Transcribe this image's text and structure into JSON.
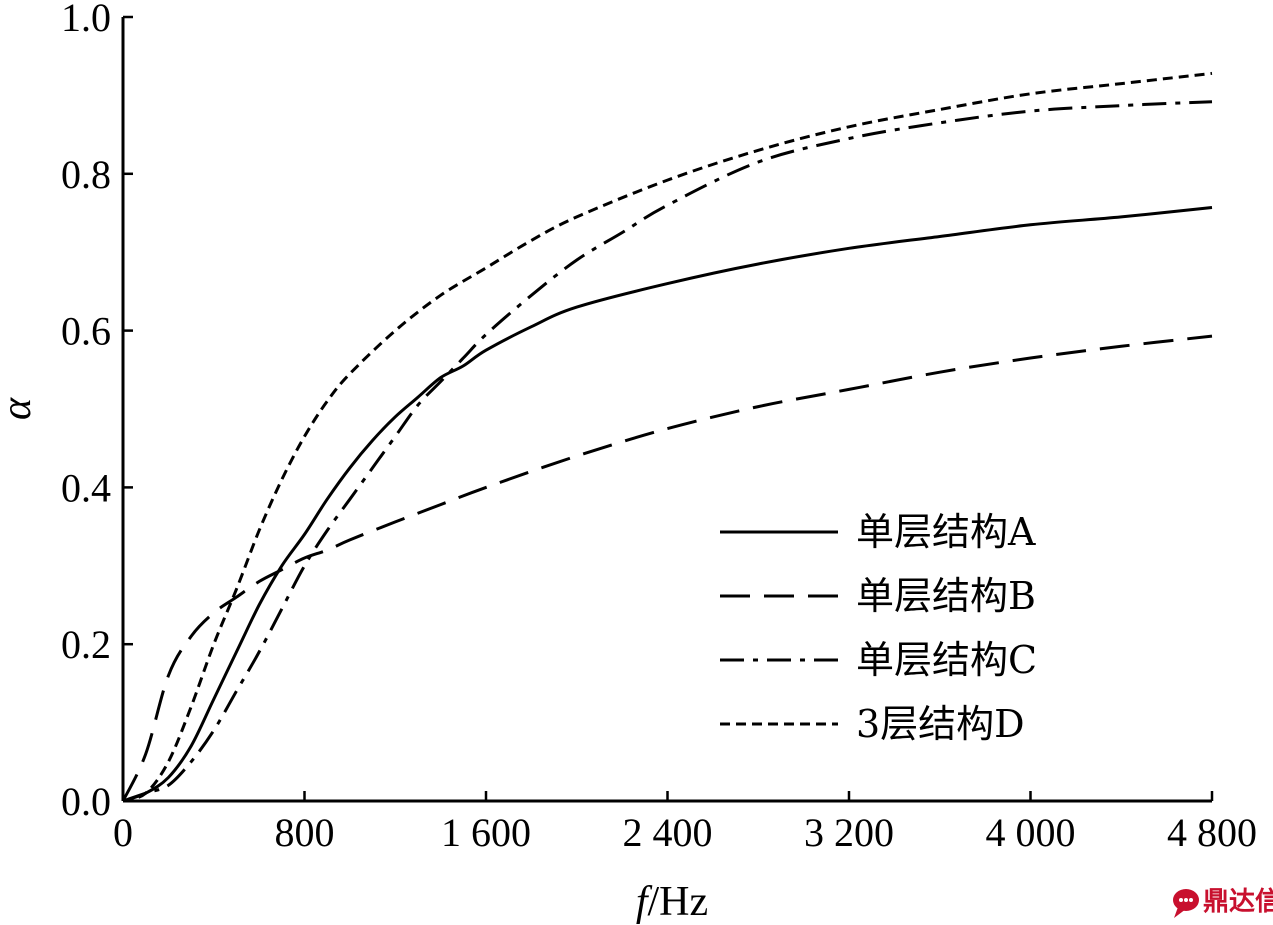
{
  "chart_data": {
    "type": "line",
    "title": "",
    "xlabel_italic": "f",
    "xlabel_unit": "/Hz",
    "ylabel": "α",
    "xlim": [
      0,
      4800
    ],
    "ylim": [
      0,
      1.0
    ],
    "x_ticks": [
      0,
      800,
      1600,
      2400,
      3200,
      4000,
      4800
    ],
    "x_tick_labels": [
      "0",
      "800",
      "1 600",
      "2 400",
      "3 200",
      "4 000",
      "4 800"
    ],
    "y_ticks": [
      0,
      0.2,
      0.4,
      0.6,
      0.8,
      1.0
    ],
    "y_tick_labels": [
      "0.0",
      "0.2",
      "0.4",
      "0.6",
      "0.8",
      "1.0"
    ],
    "grid": false,
    "legend_position": "lower-right",
    "series": [
      {
        "name": "单层结构A",
        "style": "solid",
        "x": [
          0,
          100,
          200,
          300,
          400,
          500,
          600,
          700,
          800,
          900,
          1000,
          1100,
          1200,
          1300,
          1400,
          1500,
          1600,
          1800,
          2000,
          2400,
          2800,
          3200,
          3600,
          4000,
          4400,
          4800
        ],
        "y": [
          0,
          0.01,
          0.03,
          0.07,
          0.13,
          0.19,
          0.25,
          0.3,
          0.34,
          0.385,
          0.425,
          0.46,
          0.49,
          0.515,
          0.54,
          0.555,
          0.575,
          0.605,
          0.63,
          0.66,
          0.685,
          0.705,
          0.72,
          0.735,
          0.745,
          0.757
        ]
      },
      {
        "name": "单层结构B",
        "style": "dashed",
        "x": [
          0,
          100,
          200,
          300,
          400,
          500,
          600,
          700,
          800,
          900,
          1000,
          1200,
          1400,
          1600,
          2000,
          2400,
          2800,
          3200,
          3600,
          4000,
          4400,
          4800
        ],
        "y": [
          0,
          0.06,
          0.16,
          0.21,
          0.24,
          0.26,
          0.28,
          0.295,
          0.31,
          0.32,
          0.333,
          0.356,
          0.378,
          0.4,
          0.44,
          0.475,
          0.503,
          0.525,
          0.547,
          0.565,
          0.58,
          0.593
        ]
      },
      {
        "name": "单层结构C",
        "style": "dash-dot",
        "x": [
          0,
          100,
          200,
          300,
          400,
          500,
          600,
          700,
          800,
          900,
          1000,
          1100,
          1200,
          1300,
          1400,
          1500,
          1600,
          1800,
          2000,
          2200,
          2400,
          2800,
          3200,
          3600,
          4000,
          4400,
          4800
        ],
        "y": [
          0,
          0.01,
          0.02,
          0.05,
          0.09,
          0.14,
          0.19,
          0.245,
          0.3,
          0.345,
          0.385,
          0.425,
          0.465,
          0.505,
          0.535,
          0.565,
          0.595,
          0.645,
          0.69,
          0.725,
          0.76,
          0.815,
          0.845,
          0.865,
          0.88,
          0.887,
          0.892
        ]
      },
      {
        "name": "3层结构D",
        "style": "dotted",
        "x": [
          0,
          100,
          200,
          300,
          400,
          500,
          600,
          700,
          800,
          900,
          1000,
          1200,
          1400,
          1600,
          1800,
          2000,
          2400,
          2800,
          3200,
          3600,
          4000,
          4400,
          4800
        ],
        "y": [
          0,
          0.01,
          0.05,
          0.12,
          0.2,
          0.27,
          0.345,
          0.41,
          0.465,
          0.51,
          0.545,
          0.6,
          0.645,
          0.68,
          0.715,
          0.745,
          0.792,
          0.83,
          0.86,
          0.882,
          0.902,
          0.915,
          0.928
        ]
      }
    ]
  },
  "watermark": {
    "icon": "chat-bubble-icon",
    "text": "鼎达信",
    "color": "#c8102e"
  }
}
